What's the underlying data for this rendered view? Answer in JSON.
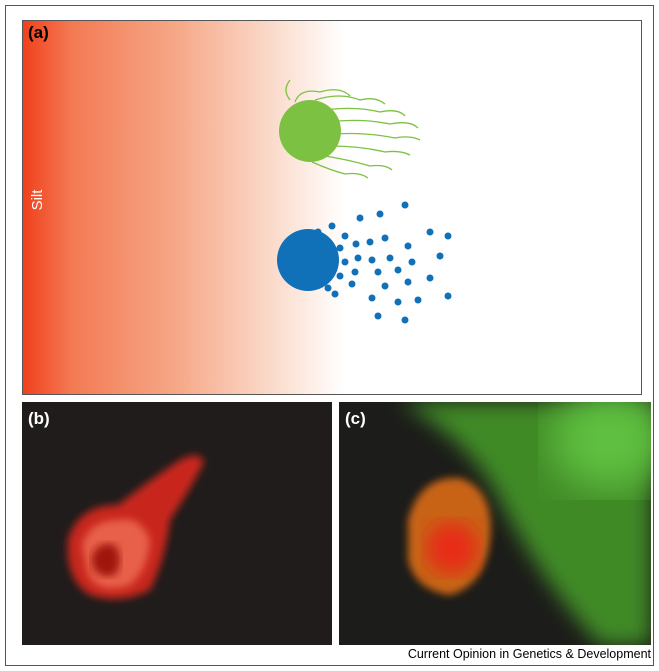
{
  "panels": [
    {
      "label": "(a)",
      "annotation": "Silt"
    },
    {
      "label": "(b)"
    },
    {
      "label": "(c)"
    }
  ],
  "caption": "Current Opinion in Genetics & Development"
}
